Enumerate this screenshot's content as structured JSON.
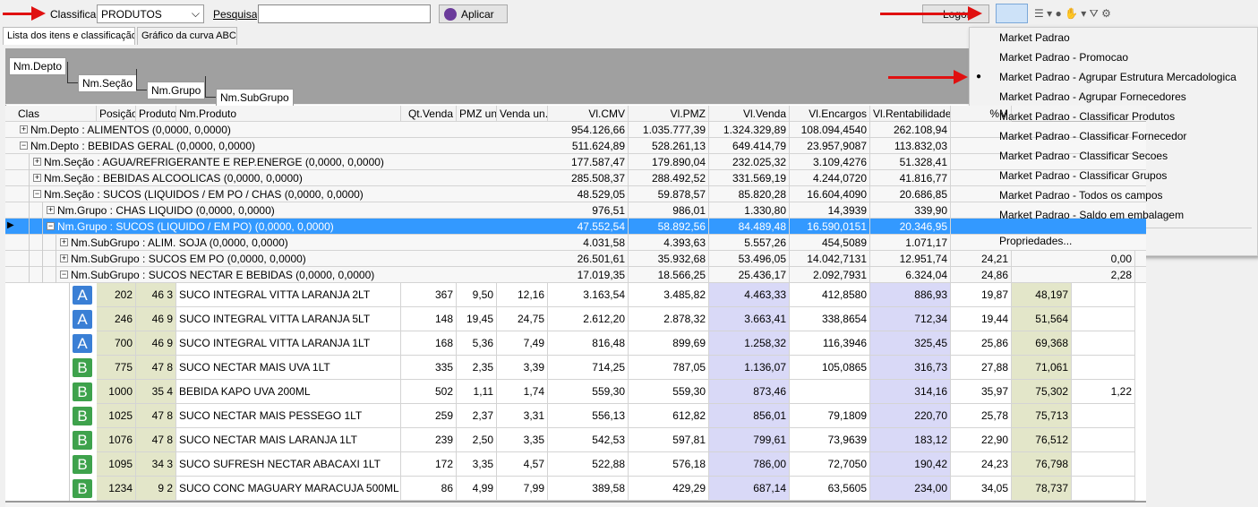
{
  "toolbar": {
    "classificar_label": "Classificar",
    "sort_value": "PRODUTOS",
    "search_label": "Pesquisa",
    "apply_button": "Aplicar",
    "logon_button": "Logon"
  },
  "tabs": [
    "Lista dos itens e classificação",
    "Gráfico da curva ABC"
  ],
  "grouping": [
    "Nm.Depto",
    "Nm.Seção",
    "Nm.Grupo",
    "Nm.SubGrupo"
  ],
  "columns": [
    "Clas",
    "Posição",
    "Produto",
    "Nm.Produto",
    "Qt.Venda",
    "PMZ un.",
    "Venda un.",
    "Vl.CMV",
    "Vl.PMZ",
    "Vl.Venda",
    "Vl.Encargos",
    "Vl.Rentabilidade",
    "%M"
  ],
  "group_rows": [
    {
      "label": "Nm.Depto : ALIMENTOS (0,0000, 0,0000)",
      "values": [
        "954.126,66",
        "1.035.777,39",
        "1.324.329,89",
        "108.094,4540",
        "262.108,94"
      ]
    },
    {
      "label": "Nm.Depto : BEBIDAS GERAL (0,0000, 0,0000)",
      "values": [
        "511.624,89",
        "528.261,13",
        "649.414,79",
        "23.957,9087",
        "113.832,03"
      ]
    },
    {
      "label": "Nm.Seção : AGUA/REFRIGERANTE E REP.ENERGE (0,0000, 0,0000)",
      "values": [
        "177.587,47",
        "179.890,04",
        "232.025,32",
        "3.109,4276",
        "51.328,41"
      ]
    },
    {
      "label": "Nm.Seção : BEBIDAS ALCOOLICAS (0,0000, 0,0000)",
      "values": [
        "285.508,37",
        "288.492,52",
        "331.569,19",
        "4.244,0720",
        "41.816,77"
      ]
    },
    {
      "label": "Nm.Seção : SUCOS (LIQUIDOS / EM PO / CHAS (0,0000, 0,0000)",
      "values": [
        "48.529,05",
        "59.878,57",
        "85.820,28",
        "16.604,4090",
        "20.686,85"
      ]
    },
    {
      "label": "Nm.Grupo : CHAS LIQUIDO (0,0000, 0,0000)",
      "values": [
        "976,51",
        "986,01",
        "1.330,80",
        "14,3939",
        "339,90"
      ]
    },
    {
      "label": "Nm.Grupo : SUCOS (LIQUIDO / EM PO) (0,0000, 0,0000)",
      "values": [
        "47.552,54",
        "58.892,56",
        "84.489,48",
        "16.590,0151",
        "20.346,95"
      ]
    },
    {
      "label": "Nm.SubGrupo : ALIM. SOJA (0,0000, 0,0000)",
      "values": [
        "4.031,58",
        "4.393,63",
        "5.557,26",
        "454,5089",
        "1.071,17"
      ]
    },
    {
      "label": "Nm.SubGrupo : SUCOS EM PO (0,0000, 0,0000)",
      "values": [
        "26.501,61",
        "35.932,68",
        "53.496,05",
        "14.042,7131",
        "12.951,74",
        "24,21",
        null,
        "0,00"
      ]
    },
    {
      "label": "Nm.SubGrupo : SUCOS NECTAR E BEBIDAS (0,0000, 0,0000)",
      "values": [
        "17.019,35",
        "18.566,25",
        "25.436,17",
        "2.092,7931",
        "6.324,04",
        "24,86",
        null,
        "2,28"
      ]
    }
  ],
  "items": [
    {
      "clas": "A",
      "pos": "202",
      "prod": "46 3",
      "name": "SUCO INTEGRAL VITTA LARANJA 2LT",
      "values": [
        "367",
        "9,50",
        "12,16",
        "3.163,54",
        "3.485,82",
        "4.463,33",
        "412,8580",
        "886,93",
        "19,87",
        "48,197"
      ]
    },
    {
      "clas": "A",
      "pos": "246",
      "prod": "46 9",
      "name": "SUCO INTEGRAL VITTA LARANJA 5LT",
      "values": [
        "148",
        "19,45",
        "24,75",
        "2.612,20",
        "2.878,32",
        "3.663,41",
        "338,8654",
        "712,34",
        "19,44",
        "51,564"
      ]
    },
    {
      "clas": "A",
      "pos": "700",
      "prod": "46 9",
      "name": "SUCO INTEGRAL VITTA LARANJA 1LT",
      "values": [
        "168",
        "5,36",
        "7,49",
        "816,48",
        "899,69",
        "1.258,32",
        "116,3946",
        "325,45",
        "25,86",
        "69,368"
      ]
    },
    {
      "clas": "B",
      "pos": "775",
      "prod": "47 8",
      "name": "SUCO NECTAR MAIS UVA 1LT",
      "values": [
        "335",
        "2,35",
        "3,39",
        "714,25",
        "787,05",
        "1.136,07",
        "105,0865",
        "316,73",
        "27,88",
        "71,061"
      ]
    },
    {
      "clas": "B",
      "pos": "1000",
      "prod": "35 4",
      "name": "BEBIDA KAPO UVA 200ML",
      "values": [
        "502",
        "1,11",
        "1,74",
        "559,30",
        "559,30",
        "873,46",
        null,
        "314,16",
        "35,97",
        "75,302",
        "1,22"
      ]
    },
    {
      "clas": "B",
      "pos": "1025",
      "prod": "47 8",
      "name": "SUCO NECTAR MAIS PESSEGO 1LT",
      "values": [
        "259",
        "2,37",
        "3,31",
        "556,13",
        "612,82",
        "856,01",
        "79,1809",
        "220,70",
        "25,78",
        "75,713"
      ]
    },
    {
      "clas": "B",
      "pos": "1076",
      "prod": "47 8",
      "name": "SUCO NECTAR MAIS LARANJA 1LT",
      "values": [
        "239",
        "2,50",
        "3,35",
        "542,53",
        "597,81",
        "799,61",
        "73,9639",
        "183,12",
        "22,90",
        "76,512"
      ]
    },
    {
      "clas": "B",
      "pos": "1095",
      "prod": "34 3",
      "name": "SUCO SUFRESH NECTAR ABACAXI 1LT",
      "values": [
        "172",
        "3,35",
        "4,57",
        "522,88",
        "576,18",
        "786,00",
        "72,7050",
        "190,42",
        "24,23",
        "76,798"
      ]
    },
    {
      "clas": "B",
      "pos": "1234",
      "prod": "9 2",
      "name": "SUCO CONC MAGUARY MARACUJA 500ML",
      "values": [
        "86",
        "4,99",
        "7,99",
        "389,58",
        "429,29",
        "687,14",
        "63,5605",
        "234,00",
        "34,05",
        "78,737"
      ]
    }
  ],
  "menu": {
    "items": [
      "Market Padrao",
      "Market Padrao - Promocao",
      "Market Padrao - Agrupar Estrutura Mercadologica",
      "Market Padrao - Agrupar Fornecedores",
      "Market Padrao - Classificar Produtos",
      "Market Padrao - Classificar Fornecedor",
      "Market Padrao - Classificar Secoes",
      "Market Padrao - Classificar Grupos",
      "Market Padrao - Todos os campos",
      "Market Padrao - Saldo em embalagem"
    ],
    "properties": "Propriedades..."
  }
}
